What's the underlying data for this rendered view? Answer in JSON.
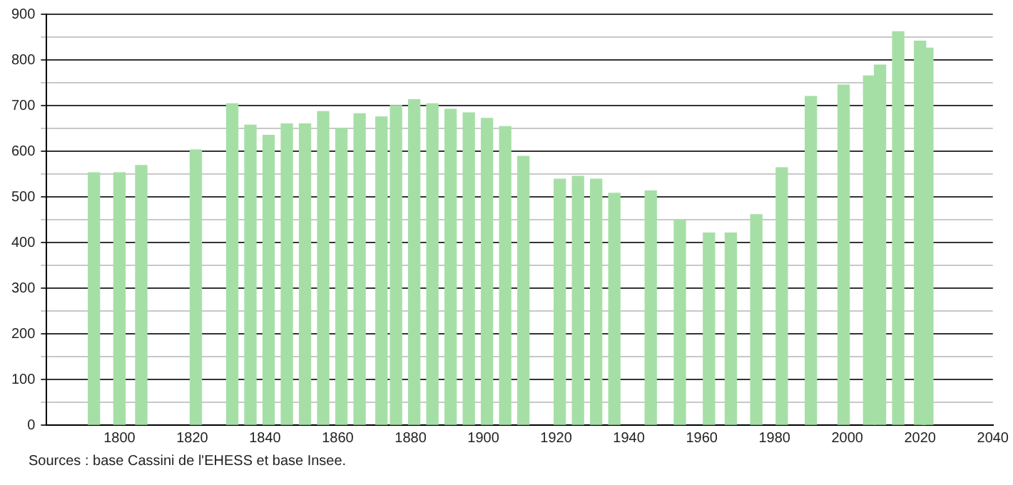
{
  "chart_data": {
    "type": "bar",
    "x": [
      1793,
      1800,
      1806,
      1821,
      1831,
      1836,
      1841,
      1846,
      1851,
      1856,
      1861,
      1866,
      1872,
      1876,
      1881,
      1886,
      1891,
      1896,
      1901,
      1906,
      1911,
      1921,
      1926,
      1931,
      1936,
      1946,
      1954,
      1962,
      1968,
      1975,
      1982,
      1990,
      1999,
      2006,
      2009,
      2014,
      2020,
      2022
    ],
    "values": [
      553,
      553,
      569,
      603,
      704,
      657,
      635,
      660,
      660,
      687,
      650,
      682,
      675,
      700,
      713,
      704,
      692,
      684,
      672,
      654,
      589,
      539,
      545,
      539,
      508,
      513,
      450,
      421,
      421,
      461,
      564,
      720,
      745,
      765,
      789,
      862,
      841,
      826
    ],
    "color": "#a6dfa6",
    "xlim": [
      1780,
      2040
    ],
    "xticks": [
      1800,
      1820,
      1840,
      1860,
      1880,
      1900,
      1920,
      1940,
      1960,
      1980,
      2000,
      2020,
      2040
    ],
    "ylim": [
      0,
      900
    ],
    "yticks": [
      0,
      {
        "value": 50,
        "label": null
      },
      100,
      {
        "value": 150,
        "label": null
      },
      200,
      {
        "value": 250,
        "label": null
      },
      300,
      {
        "value": 350,
        "label": null
      },
      400,
      {
        "value": 450,
        "label": null
      },
      500,
      {
        "value": 550,
        "label": null
      },
      600,
      {
        "value": 650,
        "label": null
      },
      700,
      {
        "value": 750,
        "label": null
      },
      800,
      {
        "value": 850,
        "label": null
      },
      900
    ],
    "grid": "y",
    "legend": false,
    "annotations": [
      "Sources : base Cassini de l'EHESS et base Insee."
    ]
  }
}
